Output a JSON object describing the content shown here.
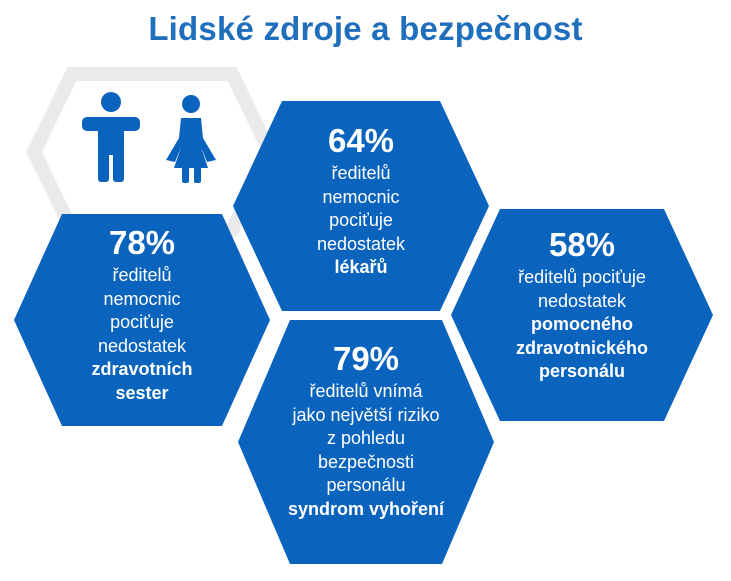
{
  "title": "Lidské zdroje a bezpečnost",
  "colors": {
    "accent": "#1f6fbd",
    "hex_fill": "#0a63bd",
    "outline_hex": "#eaeaea"
  },
  "icons": [
    "man-icon",
    "woman-icon"
  ],
  "cards": [
    {
      "id": "nurses",
      "percent": "78%",
      "lines": [
        "ředitelů",
        "nemocnic",
        "pociťuje",
        "nedostatek"
      ],
      "bold_lines": [
        "zdravotních",
        "sester"
      ]
    },
    {
      "id": "doctors",
      "percent": "64%",
      "lines": [
        "ředitelů",
        "nemocnic",
        "pociťuje",
        "nedostatek"
      ],
      "bold_lines": [
        "lékařů"
      ]
    },
    {
      "id": "support-staff",
      "percent": "58%",
      "lines": [
        "ředitelů pociťuje",
        "nedostatek"
      ],
      "bold_lines": [
        "pomocného",
        "zdravotnického",
        "personálu"
      ]
    },
    {
      "id": "burnout",
      "percent": "79%",
      "lines": [
        "ředitelů vnímá",
        "jako největší riziko",
        "z pohledu",
        "bezpečnosti",
        "personálu"
      ],
      "bold_lines": [
        "syndrom vyhoření"
      ]
    }
  ]
}
